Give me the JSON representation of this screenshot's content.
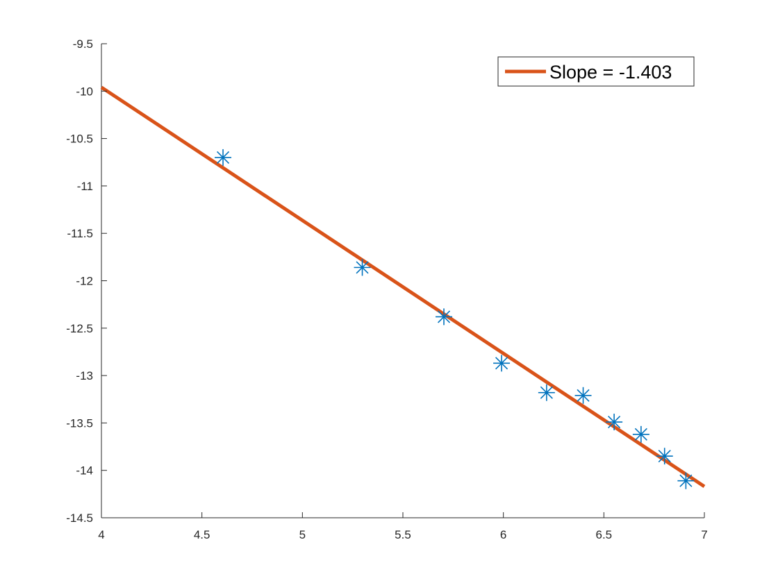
{
  "chart_data": {
    "type": "scatter",
    "title": "",
    "xlabel": "",
    "ylabel": "",
    "xlim": [
      4,
      7
    ],
    "ylim": [
      -14.5,
      -9.5
    ],
    "xticks": [
      "4",
      "4.5",
      "5",
      "5.5",
      "6",
      "6.5",
      "7"
    ],
    "yticks": [
      "-9.5",
      "-10",
      "-10.5",
      "-11",
      "-11.5",
      "-12",
      "-12.5",
      "-13",
      "-13.5",
      "-14",
      "-14.5"
    ],
    "grid": false,
    "legend_position": "top-right",
    "points": {
      "marker": "asterisk",
      "color": "#0072BD",
      "x": [
        4.605,
        5.298,
        5.704,
        5.991,
        6.215,
        6.397,
        6.551,
        6.685,
        6.802,
        6.908
      ],
      "y": [
        -10.7,
        -11.86,
        -12.38,
        -12.87,
        -13.18,
        -13.21,
        -13.49,
        -13.62,
        -13.85,
        -14.11
      ]
    },
    "fit_line": {
      "name": "Slope = -1.403",
      "color": "#D95319",
      "x": [
        4,
        7
      ],
      "y": [
        -9.96,
        -14.17
      ]
    }
  }
}
